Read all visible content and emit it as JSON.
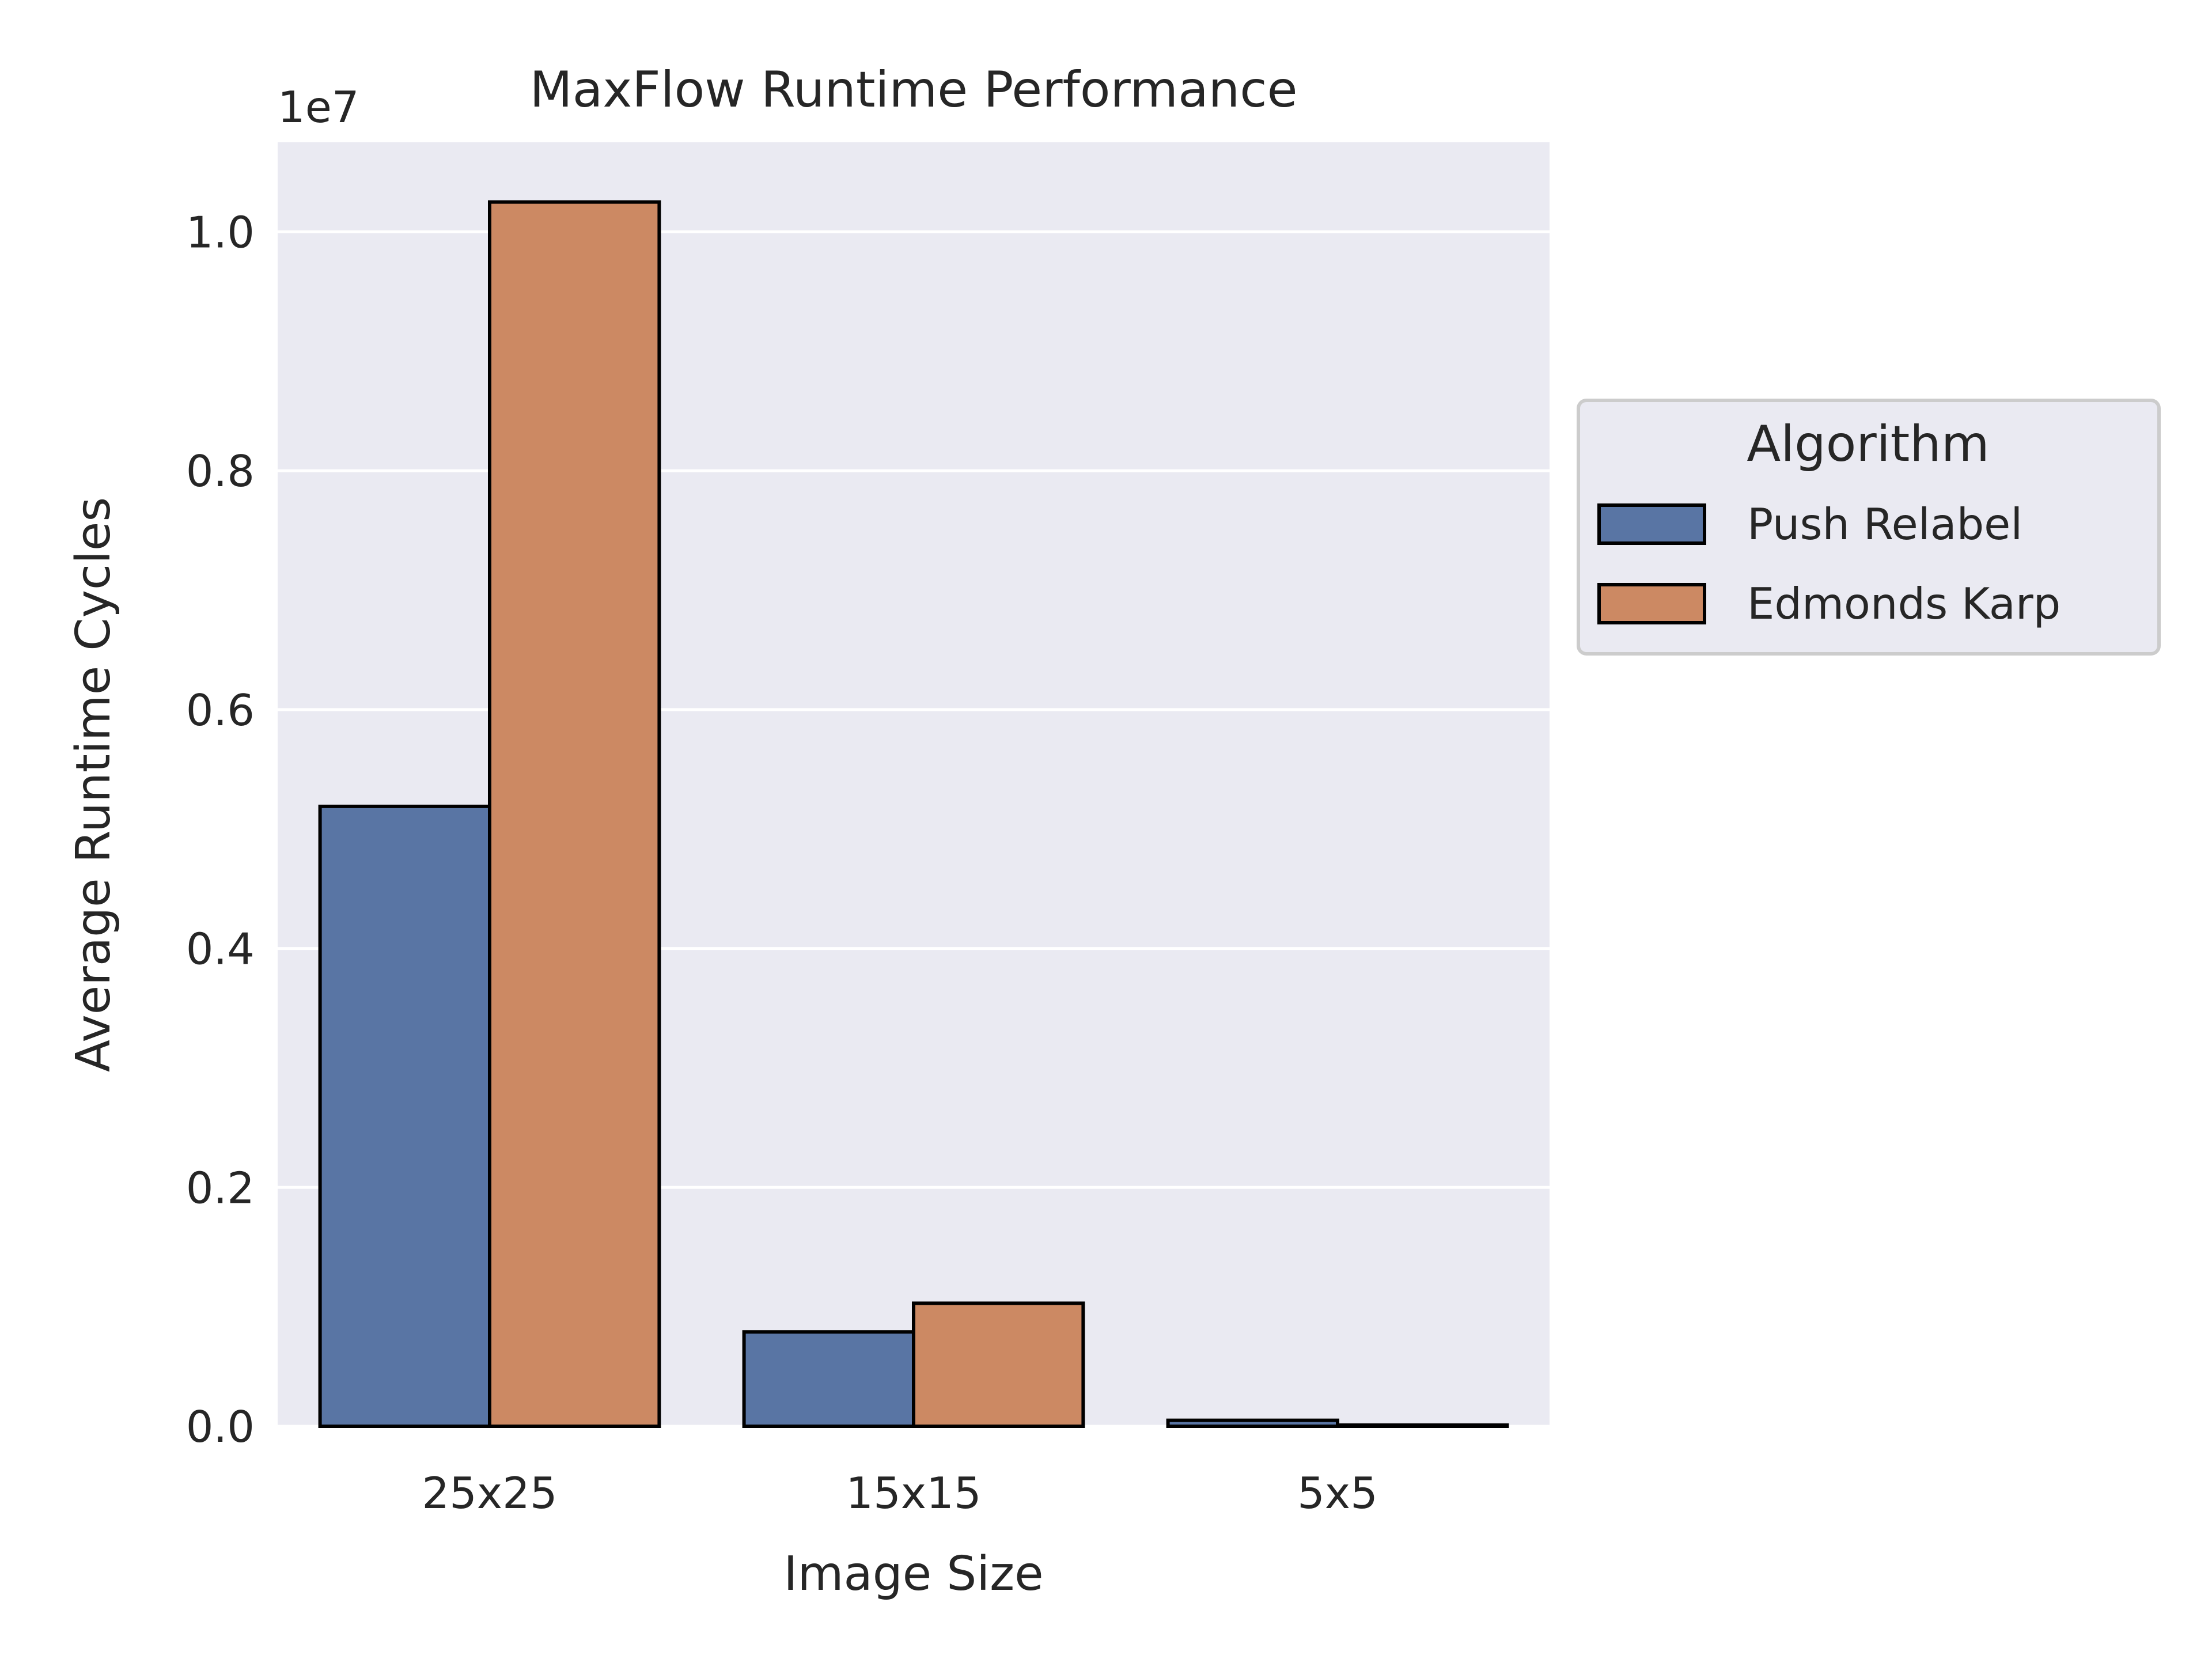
{
  "chart_data": {
    "type": "bar",
    "title": "MaxFlow Runtime Performance",
    "xlabel": "Image Size",
    "ylabel": "Average Runtime Cycles",
    "y_offset_label": "1e7",
    "categories": [
      "25x25",
      "15x15",
      "5x5"
    ],
    "series": [
      {
        "name": "Push Relabel",
        "color": "#5975a4",
        "values": [
          5190000,
          790000,
          50000
        ]
      },
      {
        "name": "Edmonds Karp",
        "color": "#cc8963",
        "values": [
          10250000,
          1030000,
          10000
        ]
      }
    ],
    "ylim": [
      0,
      10750000
    ],
    "yticks": [
      0,
      2000000,
      4000000,
      6000000,
      8000000,
      10000000
    ],
    "ytick_labels": [
      "0.0",
      "0.2",
      "0.4",
      "0.6",
      "0.8",
      "1.0"
    ],
    "grid": true,
    "legend": {
      "title": "Algorithm",
      "placement": "outside-right"
    },
    "colors": {
      "background": "#eaeaf2",
      "grid": "#ffffff",
      "bar_edge": "#000000"
    }
  }
}
